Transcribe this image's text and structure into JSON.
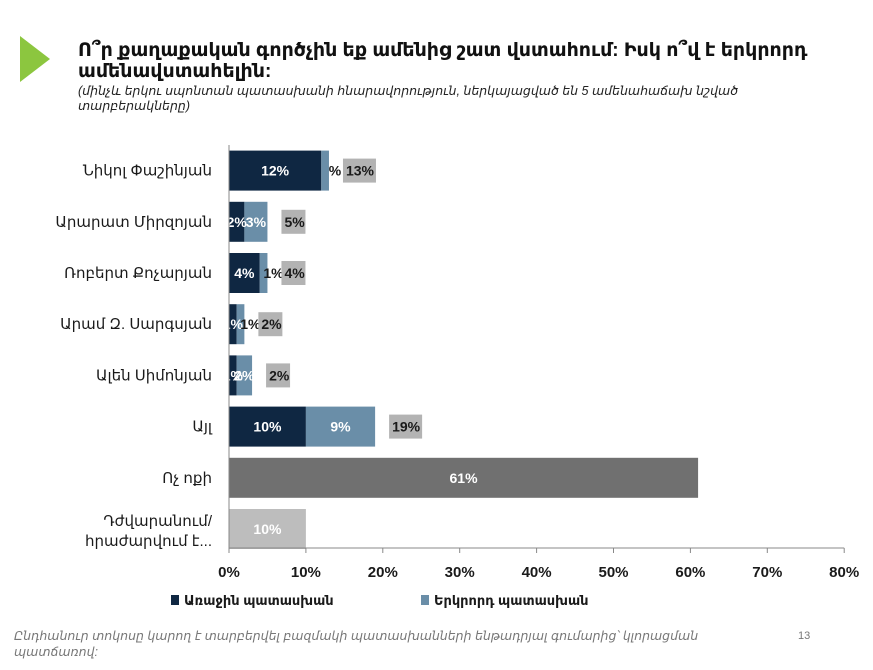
{
  "header": {
    "title": "Ո՞ր քաղաքական գործչին եք ամենից շատ վստահում: Իսկ ո՞վ է երկրորդ ամենավստահելին:",
    "subtitle": "(մինչև երկու սպոնտան պատասխանի հնարավորություն, ներկայացված են 5 ամենահաճախ նշված տարբերակները)"
  },
  "footer": {
    "note": "Ընդհանուր տոկոսը կարող է տարբերվել բազմակի պատասխանների ենթադրյալ գումարից՝ կլորացման պատճառով:",
    "page": "13"
  },
  "colors": {
    "accent": "#8cc63f",
    "first": "#0f2742",
    "second": "#6a8ea8",
    "total_label_bg": "#b3b3b3",
    "none": "#707070",
    "difficult": "#bdbdbd",
    "axis": "#888888"
  },
  "chart_data": {
    "type": "bar",
    "orientation": "horizontal",
    "stacked": true,
    "categories": [
      "Նիկոլ Փաշինյան",
      "Արարատ Միրզոյան",
      "Ռոբերտ Քոչարյան",
      "Արամ Զ. Սարգսյան",
      "Ալեն Սիմոնյան",
      "Այլ",
      "Ոչ ոքի",
      "Դժվարանում/ հրաժարվում է..."
    ],
    "series": [
      {
        "name": "Առաջին պատասխան",
        "values": [
          12,
          2,
          4,
          1,
          1,
          10,
          null,
          null
        ],
        "labels": [
          "12%",
          "2%",
          "4%",
          "1%",
          "1%",
          "10%",
          "",
          ""
        ]
      },
      {
        "name": "Երկրորդ պատասխան",
        "values": [
          1,
          3,
          1,
          1,
          2,
          9,
          null,
          null
        ],
        "labels": [
          "%",
          "3%",
          "1%",
          "1%",
          "2%",
          "9%",
          "",
          ""
        ]
      }
    ],
    "single_values": [
      null,
      null,
      null,
      null,
      null,
      null,
      61,
      10
    ],
    "single_labels": [
      "",
      "",
      "",
      "",
      "",
      "",
      "61%",
      "10%"
    ],
    "total_labels": [
      "13%",
      "5%",
      "4%",
      "2%",
      "2%",
      "19%",
      "",
      ""
    ],
    "x_ticks": [
      "0%",
      "10%",
      "20%",
      "30%",
      "40%",
      "50%",
      "60%",
      "70%",
      "80%"
    ],
    "xlim": [
      0,
      80
    ],
    "grid": false,
    "legend_position": "bottom"
  }
}
